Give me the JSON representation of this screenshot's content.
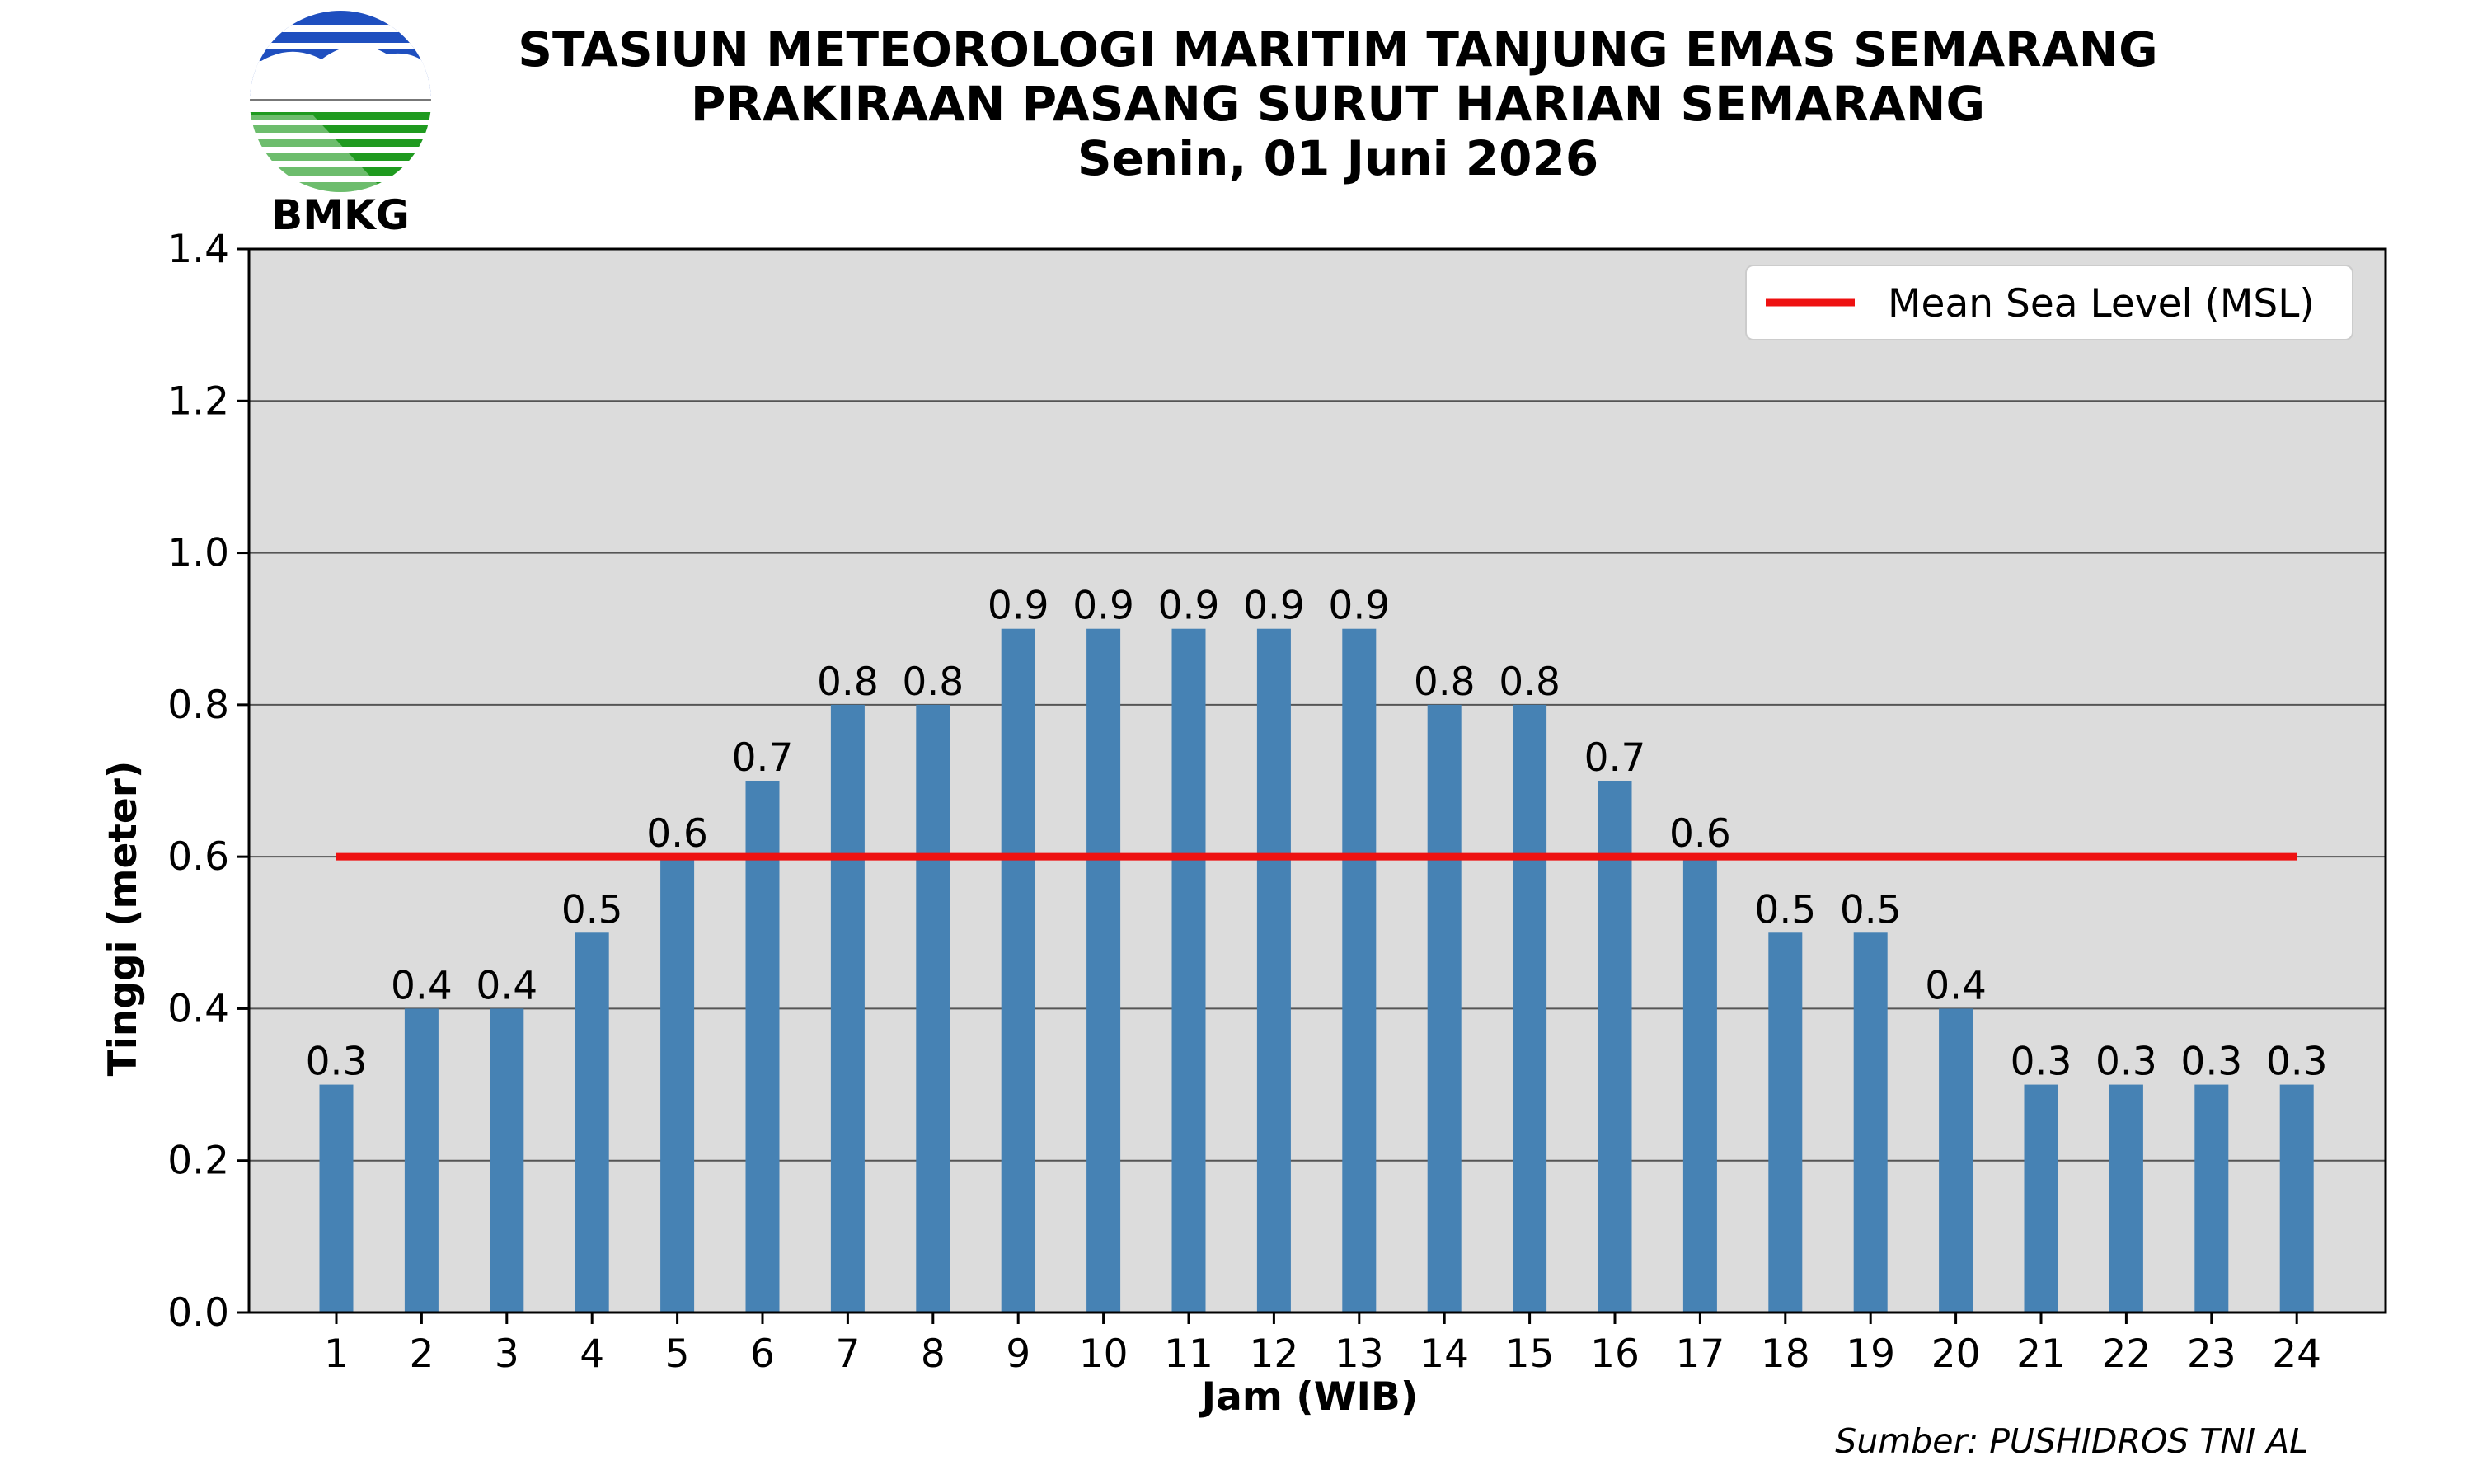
{
  "header": {
    "title_line1": "STASIUN METEOROLOGI MARITIM TANJUNG EMAS SEMARANG",
    "title_line2": "PRAKIRAAN PASANG SURUT HARIAN SEMARANG",
    "title_line3": "Senin, 01 Juni 2026"
  },
  "logo": {
    "text": "BMKG",
    "colors": {
      "blue": "#1f4fbf",
      "green": "#1f9a1f"
    }
  },
  "source": "Sumber: PUSHIDROS TNI AL",
  "colors": {
    "bar": "#4682b4",
    "msl": "#ee1111",
    "plot_bg": "#dcdcdc",
    "grid": "#555555"
  },
  "chart_data": {
    "type": "bar",
    "categories": [
      "1",
      "2",
      "3",
      "4",
      "5",
      "6",
      "7",
      "8",
      "9",
      "10",
      "11",
      "12",
      "13",
      "14",
      "15",
      "16",
      "17",
      "18",
      "19",
      "20",
      "21",
      "22",
      "23",
      "24"
    ],
    "values": [
      0.3,
      0.4,
      0.4,
      0.5,
      0.6,
      0.7,
      0.8,
      0.8,
      0.9,
      0.9,
      0.9,
      0.9,
      0.9,
      0.8,
      0.8,
      0.7,
      0.6,
      0.5,
      0.5,
      0.4,
      0.3,
      0.3,
      0.3,
      0.3
    ],
    "value_labels": [
      "0.3",
      "0.4",
      "0.4",
      "0.5",
      "0.6",
      "0.7",
      "0.8",
      "0.8",
      "0.9",
      "0.9",
      "0.9",
      "0.9",
      "0.9",
      "0.8",
      "0.8",
      "0.7",
      "0.6",
      "0.5",
      "0.5",
      "0.4",
      "0.3",
      "0.3",
      "0.3",
      "0.3"
    ],
    "xlabel": "Jam (WIB)",
    "ylabel": "Tinggi (meter)",
    "ylim": [
      0,
      1.4
    ],
    "yticks": [
      "0.0",
      "0.2",
      "0.4",
      "0.6",
      "0.8",
      "1.0",
      "1.2",
      "1.4"
    ],
    "grid": true,
    "reference_line": {
      "name": "Mean Sea Level (MSL)",
      "value": 0.6
    },
    "legend": {
      "position": "top-right",
      "entries": [
        "Mean Sea Level (MSL)"
      ]
    }
  }
}
